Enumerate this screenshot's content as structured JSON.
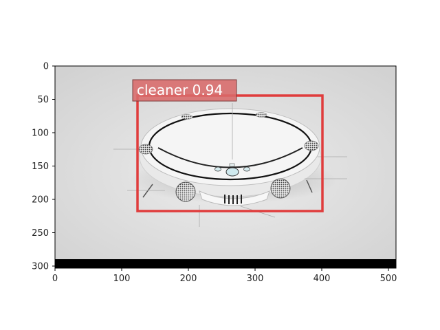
{
  "figure": {
    "type": "image_detection_overlay",
    "x_ticks": [
      "0",
      "100",
      "200",
      "300",
      "400",
      "500"
    ],
    "y_ticks": [
      "0",
      "50",
      "100",
      "150",
      "200",
      "250",
      "300"
    ]
  },
  "detection": {
    "label": "cleaner 0.94",
    "class_name": "cleaner",
    "score": 0.94,
    "box_color": "#e03c3c",
    "label_bg_color": "#d86a6a"
  },
  "colors": {
    "background": "#dcdcdc",
    "robot_body": "#f3f3f3",
    "bottom_bar": "#000000"
  },
  "icons": [
    "robot-vacuum-icon"
  ]
}
